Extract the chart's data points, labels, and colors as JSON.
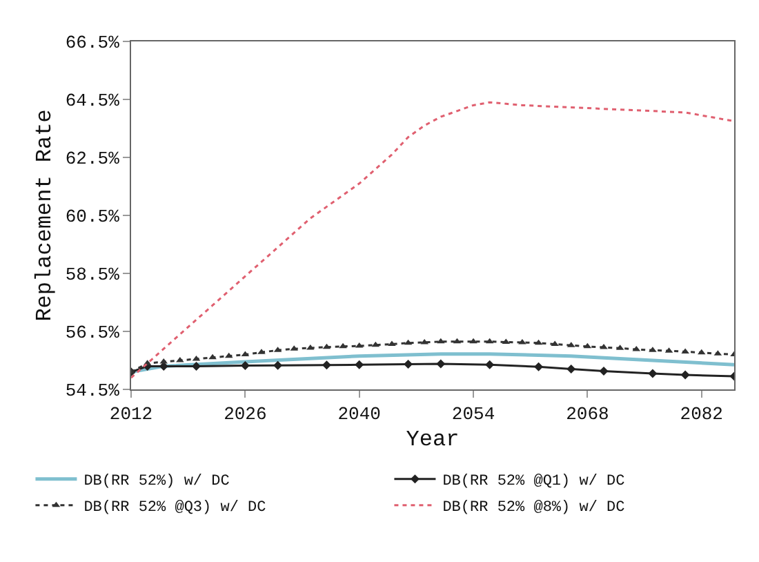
{
  "chart_data": {
    "type": "line",
    "xlabel": "Year",
    "ylabel": "Replacement Rate",
    "xlim": [
      2012,
      2086
    ],
    "xticks": [
      2012,
      2026,
      2040,
      2054,
      2068,
      2082
    ],
    "ylim": [
      54.5,
      66.5
    ],
    "yticks": [
      {
        "value": 54.5,
        "label": "54.5%"
      },
      {
        "value": 56.5,
        "label": "56.5%"
      },
      {
        "value": 58.5,
        "label": "58.5%"
      },
      {
        "value": 60.5,
        "label": "60.5%"
      },
      {
        "value": 62.5,
        "label": "62.5%"
      },
      {
        "value": 64.5,
        "label": "64.5%"
      },
      {
        "value": 66.5,
        "label": "66.5%"
      }
    ],
    "legend": "bottom",
    "series": [
      {
        "name": "DB(RR 52%) w/ DC",
        "color": "#7fbfcf",
        "marker": "none",
        "line_style": "solid",
        "x": [
          2012,
          2016,
          2026,
          2040,
          2050,
          2056,
          2066,
          2076,
          2086
        ],
        "values": [
          55.1,
          55.3,
          55.45,
          55.65,
          55.72,
          55.72,
          55.65,
          55.5,
          55.35
        ]
      },
      {
        "name": "DB(RR 52% @Q1) w/ DC",
        "color": "#222222",
        "marker": "diamond",
        "line_style": "solid",
        "x": [
          2012,
          2014,
          2016,
          2020,
          2026,
          2030,
          2036,
          2040,
          2046,
          2050,
          2056,
          2062,
          2066,
          2070,
          2076,
          2080,
          2086
        ],
        "values": [
          55.1,
          55.3,
          55.3,
          55.3,
          55.32,
          55.33,
          55.34,
          55.35,
          55.37,
          55.38,
          55.35,
          55.28,
          55.2,
          55.13,
          55.05,
          55.0,
          54.95
        ]
      },
      {
        "name": "DB(RR 52% @Q3) w/ DC",
        "color": "#333333",
        "marker": "triangle",
        "line_style": "dotted",
        "x": [
          2012,
          2014,
          2016,
          2018,
          2020,
          2022,
          2024,
          2026,
          2028,
          2030,
          2032,
          2034,
          2036,
          2038,
          2040,
          2042,
          2044,
          2046,
          2048,
          2050,
          2052,
          2054,
          2056,
          2058,
          2060,
          2062,
          2064,
          2066,
          2068,
          2070,
          2072,
          2074,
          2076,
          2078,
          2080,
          2082,
          2084,
          2086
        ],
        "values": [
          55.1,
          55.4,
          55.45,
          55.5,
          55.55,
          55.6,
          55.65,
          55.7,
          55.78,
          55.85,
          55.9,
          55.93,
          55.96,
          55.98,
          56.0,
          56.03,
          56.06,
          56.1,
          56.12,
          56.15,
          56.15,
          56.15,
          56.15,
          56.13,
          56.12,
          56.1,
          56.06,
          56.02,
          55.98,
          55.95,
          55.92,
          55.88,
          55.85,
          55.83,
          55.8,
          55.77,
          55.73,
          55.7
        ]
      },
      {
        "name": "DB(RR 52% @8%) w/ DC",
        "color": "#e06070",
        "marker": "none",
        "line_style": "dotted",
        "x": [
          2012,
          2014,
          2016,
          2018,
          2020,
          2022,
          2024,
          2026,
          2028,
          2030,
          2032,
          2034,
          2036,
          2038,
          2040,
          2042,
          2044,
          2046,
          2048,
          2050,
          2052,
          2054,
          2056,
          2058,
          2060,
          2064,
          2068,
          2072,
          2076,
          2080,
          2082,
          2084,
          2086
        ],
        "values": [
          54.9,
          55.4,
          55.9,
          56.4,
          56.9,
          57.4,
          57.9,
          58.4,
          58.9,
          59.4,
          59.9,
          60.4,
          60.8,
          61.2,
          61.6,
          62.1,
          62.6,
          63.2,
          63.6,
          63.9,
          64.1,
          64.3,
          64.4,
          64.35,
          64.3,
          64.25,
          64.2,
          64.15,
          64.1,
          64.05,
          63.95,
          63.85,
          63.75
        ]
      }
    ]
  }
}
